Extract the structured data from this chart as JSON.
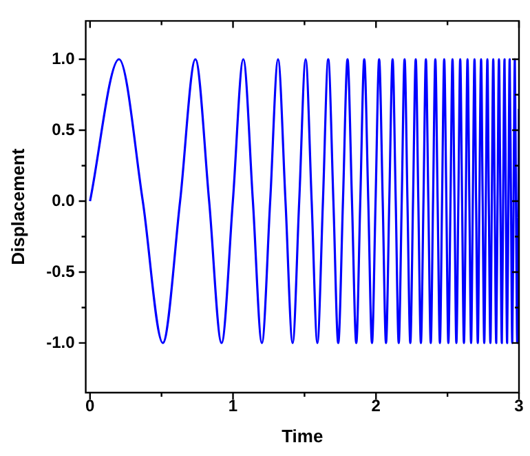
{
  "chart_data": {
    "type": "line",
    "xlabel": "Time",
    "ylabel": "Displacement",
    "xlim": [
      -0.03,
      3
    ],
    "xticks": [
      0,
      {
        "value": 0.5,
        "label": null
      },
      1,
      {
        "value": 1.5,
        "label": null
      },
      2,
      {
        "value": 2.5,
        "label": null
      },
      3
    ],
    "ylim": [
      -1.35,
      1.27
    ],
    "yticks": [
      {
        "value": -1,
        "label": "-1.0"
      },
      {
        "value": -0.75,
        "label": null
      },
      {
        "value": -0.5,
        "label": "-0.5"
      },
      {
        "value": -0.25,
        "label": null
      },
      {
        "value": 0,
        "label": "0.0"
      },
      {
        "value": 0.25,
        "label": null
      },
      {
        "value": 0.5,
        "label": "0.5"
      },
      {
        "value": 0.75,
        "label": null
      },
      {
        "value": 1,
        "label": "1.0"
      }
    ],
    "marker": "none",
    "line_style": "solid",
    "series": [
      {
        "color": "#0000ff",
        "x": [
          0,
          0.203,
          0.369,
          0.509,
          0.63,
          0.737,
          0.833,
          0.92,
          0.999,
          1.072,
          1.139,
          1.202,
          1.26,
          1.315,
          1.367,
          1.417,
          1.463,
          1.508,
          1.55,
          1.59,
          1.629,
          1.666,
          1.702,
          1.736,
          1.769,
          1.801,
          1.832,
          1.862,
          1.89,
          1.918,
          1.946,
          1.972,
          1.997,
          2.022,
          2.047,
          2.07,
          2.093,
          2.116,
          2.138,
          2.159,
          2.18,
          2.2,
          2.22,
          2.24,
          2.259,
          2.278,
          2.296,
          2.314,
          2.332,
          2.349,
          2.366,
          2.383,
          2.399,
          2.415,
          2.431,
          2.447,
          2.462,
          2.477,
          2.492,
          2.506,
          2.521,
          2.535,
          2.549,
          2.562,
          2.576,
          2.589,
          2.602,
          2.615,
          2.628,
          2.64,
          2.653,
          2.665,
          2.677,
          2.689,
          2.7,
          2.712,
          2.723,
          2.735,
          2.746,
          2.757,
          2.768,
          2.779,
          2.789,
          2.8,
          2.81,
          2.82,
          2.83,
          2.841,
          2.85,
          2.86,
          2.87,
          2.88,
          2.889,
          2.899,
          2.908,
          2.917,
          2.926,
          2.935,
          2.944,
          2.953,
          2.962,
          2.971,
          2.979,
          2.988,
          2.996,
          3
        ],
        "values": [
          0,
          1,
          0,
          -1,
          0,
          1,
          0,
          -1,
          0,
          1,
          0,
          -1,
          0,
          1,
          0,
          -1,
          0,
          1,
          0,
          -1,
          0,
          1,
          0,
          -1,
          0,
          1,
          0,
          -1,
          0,
          1,
          0,
          -1,
          0,
          1,
          0,
          -1,
          0,
          1,
          0,
          -1,
          0,
          1,
          0,
          -1,
          0,
          1,
          0,
          -1,
          0,
          1,
          0,
          -1,
          0,
          1,
          0,
          -1,
          0,
          1,
          0,
          -1,
          0,
          1,
          0,
          -1,
          0,
          1,
          0,
          -1,
          0,
          1,
          0,
          -1,
          0,
          1,
          0,
          -1,
          0,
          1,
          0,
          -1,
          0,
          1,
          0,
          -1,
          0,
          1,
          0,
          -1,
          0,
          1,
          0,
          -1,
          0,
          1,
          0,
          -1,
          0,
          1,
          0,
          -1,
          0,
          1,
          0,
          -1,
          0,
          0.65
        ]
      }
    ]
  }
}
